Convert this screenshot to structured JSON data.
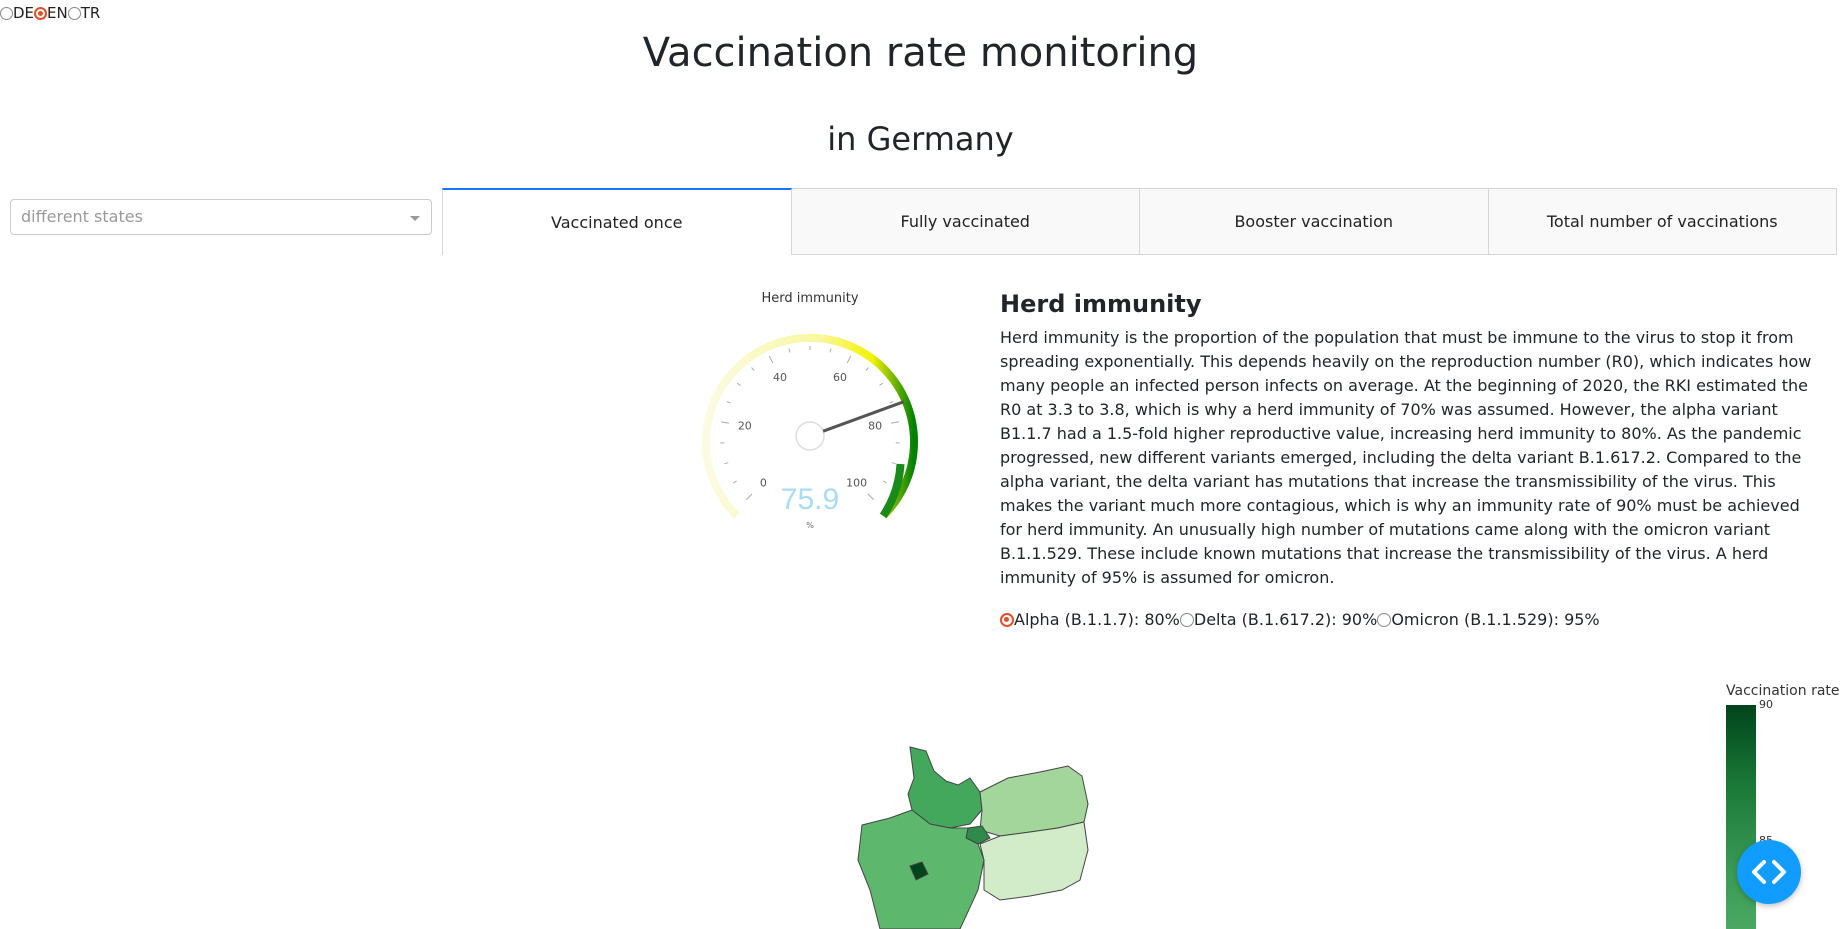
{
  "language": {
    "options": [
      {
        "label": "DE",
        "selected": false
      },
      {
        "label": "EN",
        "selected": true
      },
      {
        "label": "TR",
        "selected": false
      }
    ]
  },
  "header": {
    "title": "Vaccination rate monitoring",
    "subtitle": "in Germany"
  },
  "dropdown": {
    "placeholder": "different states"
  },
  "tabs": [
    {
      "label": "Vaccinated once",
      "active": true
    },
    {
      "label": "Fully vaccinated",
      "active": false
    },
    {
      "label": "Booster vaccination",
      "active": false
    },
    {
      "label": "Total number of vaccinations",
      "active": false
    }
  ],
  "gauge": {
    "title": "Herd immunity",
    "value": "75.9",
    "unit": "%",
    "ticks": [
      "0",
      "20",
      "40",
      "60",
      "80",
      "100"
    ],
    "min": 0,
    "max": 100,
    "colors": {
      "start": "#fbfbe3",
      "mid": "#f4f300",
      "end": "#008000",
      "value_text": "#a9dcf6",
      "needle": "#555555"
    }
  },
  "info": {
    "heading": "Herd immunity",
    "body": "Herd immunity is the proportion of the population that must be immune to the virus to stop it from spreading exponentially. This depends heavily on the reproduction number (R0), which indicates how many people an infected person infects on average. At the beginning of 2020, the RKI estimated the R0 at 3.3 to 3.8, which is why a herd immunity of 70% was assumed. However, the alpha variant B1.1.7 had a 1.5-fold higher reproductive value, increasing herd immunity to 80%. As the pandemic progressed, new different variants emerged, including the delta variant B.1.617.2. Compared to the alpha variant, the delta variant has mutations that increase the transmissibility of the virus. This makes the variant much more contagious, which is why an immunity rate of 90% must be achieved for herd immunity. An unusually high number of mutations came along with the omicron variant B.1.1.529. These include known mutations that increase the transmissibility of the virus. A herd immunity of 95% is assumed for omicron.",
    "variants": [
      {
        "label": "Alpha (B.1.1.7): 80%",
        "selected": true
      },
      {
        "label": "Delta (B.1.617.2): 90%",
        "selected": false
      },
      {
        "label": "Omicron (B.1.1.529): 95%",
        "selected": false
      }
    ]
  },
  "map": {
    "colorbar_title": "Vaccination rate",
    "colorbar_ticks": [
      "90",
      "85"
    ],
    "colors": {
      "dark": "#00441b",
      "high": "#2e8b4a",
      "mid": "#43a85c",
      "light": "#a3d69a",
      "lighter": "#d2ecc9",
      "border": "#444444"
    }
  },
  "fab": {
    "icon": "code-icon",
    "color": "#119dff"
  }
}
